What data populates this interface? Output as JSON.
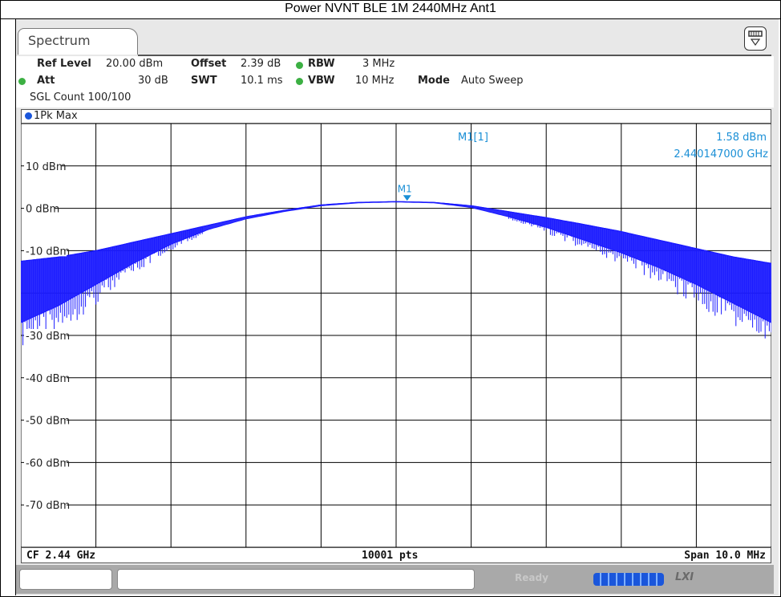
{
  "title": "Power NVNT BLE 1M 2440MHz Ant1",
  "tab": {
    "label": "Spectrum"
  },
  "settings": {
    "ref_level_label": "Ref Level",
    "ref_level_value": "20.00 dBm",
    "offset_label": "Offset",
    "offset_value": "2.39 dB",
    "rbw_label": "RBW",
    "rbw_value": "3 MHz",
    "att_label": "Att",
    "att_value": "30 dB",
    "swt_label": "SWT",
    "swt_value": "10.1 ms",
    "vbw_label": "VBW",
    "vbw_value": "10 MHz",
    "mode_label": "Mode",
    "mode_value": "Auto Sweep",
    "sgl_count": "SGL Count 100/100"
  },
  "trace_label": "1Pk Max",
  "marker": {
    "name": "M1",
    "readout_label": "M1[1]",
    "level": "1.58 dBm",
    "frequency": "2.440147000 GHz",
    "x_mhz": 0.147,
    "y_dbm": 1.58
  },
  "footer": {
    "cf": "CF 2.44 GHz",
    "points": "10001 pts",
    "span": "Span 10.0 MHz"
  },
  "status": {
    "ready": "Ready",
    "lxi": "LXI"
  },
  "colors": {
    "trace": "#1a1aff",
    "marker": "#1a8fd6",
    "grid": "#000000"
  },
  "chart_data": {
    "type": "line",
    "title": "Power NVNT BLE 1M 2440MHz Ant1",
    "x_unit": "MHz offset from CF",
    "xlim": [
      -5,
      5
    ],
    "ylim": [
      -80,
      20
    ],
    "y_ticks": [
      10,
      0,
      -10,
      -20,
      -30,
      -40,
      -50,
      -60,
      -70
    ],
    "y_tick_labels": [
      "10 dBm",
      "0 dBm",
      "-10 dBm",
      "",
      "-30 dBm",
      "-40 dBm",
      "-50 dBm",
      "-60 dBm",
      "-70 dBm"
    ],
    "x_divisions": 10,
    "grid": true,
    "series": [
      {
        "name": "1Pk Max",
        "x": [
          -5,
          -4.5,
          -4,
          -3.5,
          -3,
          -2.5,
          -2,
          -1.5,
          -1,
          -0.5,
          0,
          0.5,
          1,
          1.5,
          2,
          2.5,
          3,
          3.5,
          4,
          4.5,
          5
        ],
        "max": [
          -12.5,
          -11.5,
          -10,
          -8,
          -6,
          -4,
          -2,
          -0.5,
          0.8,
          1.4,
          1.58,
          1.4,
          0.6,
          -0.8,
          -2.2,
          -3.8,
          -5.5,
          -7.5,
          -9.5,
          -11.5,
          -13
        ],
        "min": [
          -27,
          -23,
          -18,
          -13,
          -8.5,
          -5,
          -2.5,
          -0.8,
          0.6,
          1.3,
          1.5,
          1.3,
          0.2,
          -2,
          -4.5,
          -7.5,
          -10.5,
          -14,
          -18,
          -22.5,
          -27
        ]
      }
    ]
  }
}
